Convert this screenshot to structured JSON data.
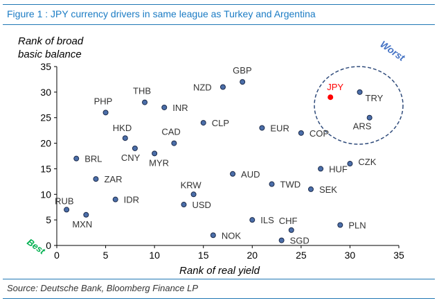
{
  "figure": {
    "title": "Figure 1 : JPY currency drivers in same league as Turkey and Argentina",
    "source": "Source: Deutsche Bank, Bloomberg Finance LP"
  },
  "colors": {
    "title": "#1a7bc4",
    "rule": "#1f77b4",
    "point_fill": "#4b6ea9",
    "point_stroke": "#1b2a4a",
    "highlight": "#ff0000",
    "ellipse": "#2e4a7a",
    "worst": "#4472c4",
    "best": "#00b050"
  },
  "chart_data": {
    "type": "scatter",
    "xlabel": "Rank of real yield",
    "ylabel": [
      "Rank of broad",
      "basic balance"
    ],
    "xlim": [
      0,
      35
    ],
    "ylim": [
      0,
      35
    ],
    "xticks": [
      0,
      5,
      10,
      15,
      20,
      25,
      30,
      35
    ],
    "yticks": [
      0,
      5,
      10,
      15,
      20,
      25,
      30,
      35
    ],
    "grid": false,
    "annotations": {
      "worst": "Worst",
      "best": "Best"
    },
    "highlight": "JPY",
    "points": [
      {
        "label": "GBP",
        "x": 19,
        "y": 32
      },
      {
        "label": "NZD",
        "x": 17,
        "y": 31
      },
      {
        "label": "THB",
        "x": 9,
        "y": 28
      },
      {
        "label": "PHP",
        "x": 5,
        "y": 26
      },
      {
        "label": "INR",
        "x": 11,
        "y": 27
      },
      {
        "label": "JPY",
        "x": 28,
        "y": 29
      },
      {
        "label": "TRY",
        "x": 31,
        "y": 30
      },
      {
        "label": "ARS",
        "x": 32,
        "y": 25
      },
      {
        "label": "CLP",
        "x": 15,
        "y": 24
      },
      {
        "label": "EUR",
        "x": 21,
        "y": 23
      },
      {
        "label": "COP",
        "x": 25,
        "y": 22
      },
      {
        "label": "HKD",
        "x": 7,
        "y": 21
      },
      {
        "label": "CAD",
        "x": 12,
        "y": 20
      },
      {
        "label": "CNY",
        "x": 8,
        "y": 19
      },
      {
        "label": "MYR",
        "x": 10,
        "y": 18
      },
      {
        "label": "BRL",
        "x": 2,
        "y": 17
      },
      {
        "label": "CZK",
        "x": 30,
        "y": 16
      },
      {
        "label": "HUF",
        "x": 27,
        "y": 15
      },
      {
        "label": "AUD",
        "x": 18,
        "y": 14
      },
      {
        "label": "ZAR",
        "x": 4,
        "y": 13
      },
      {
        "label": "TWD",
        "x": 22,
        "y": 12
      },
      {
        "label": "SEK",
        "x": 26,
        "y": 11
      },
      {
        "label": "KRW",
        "x": 14,
        "y": 10
      },
      {
        "label": "IDR",
        "x": 6,
        "y": 9
      },
      {
        "label": "USD",
        "x": 13,
        "y": 8
      },
      {
        "label": "RUB",
        "x": 1,
        "y": 7
      },
      {
        "label": "MXN",
        "x": 3,
        "y": 6
      },
      {
        "label": "ILS",
        "x": 20,
        "y": 5
      },
      {
        "label": "CHF",
        "x": 24,
        "y": 3
      },
      {
        "label": "PLN",
        "x": 29,
        "y": 4
      },
      {
        "label": "NOK",
        "x": 16,
        "y": 2
      },
      {
        "label": "SGD",
        "x": 23,
        "y": 1
      }
    ]
  }
}
